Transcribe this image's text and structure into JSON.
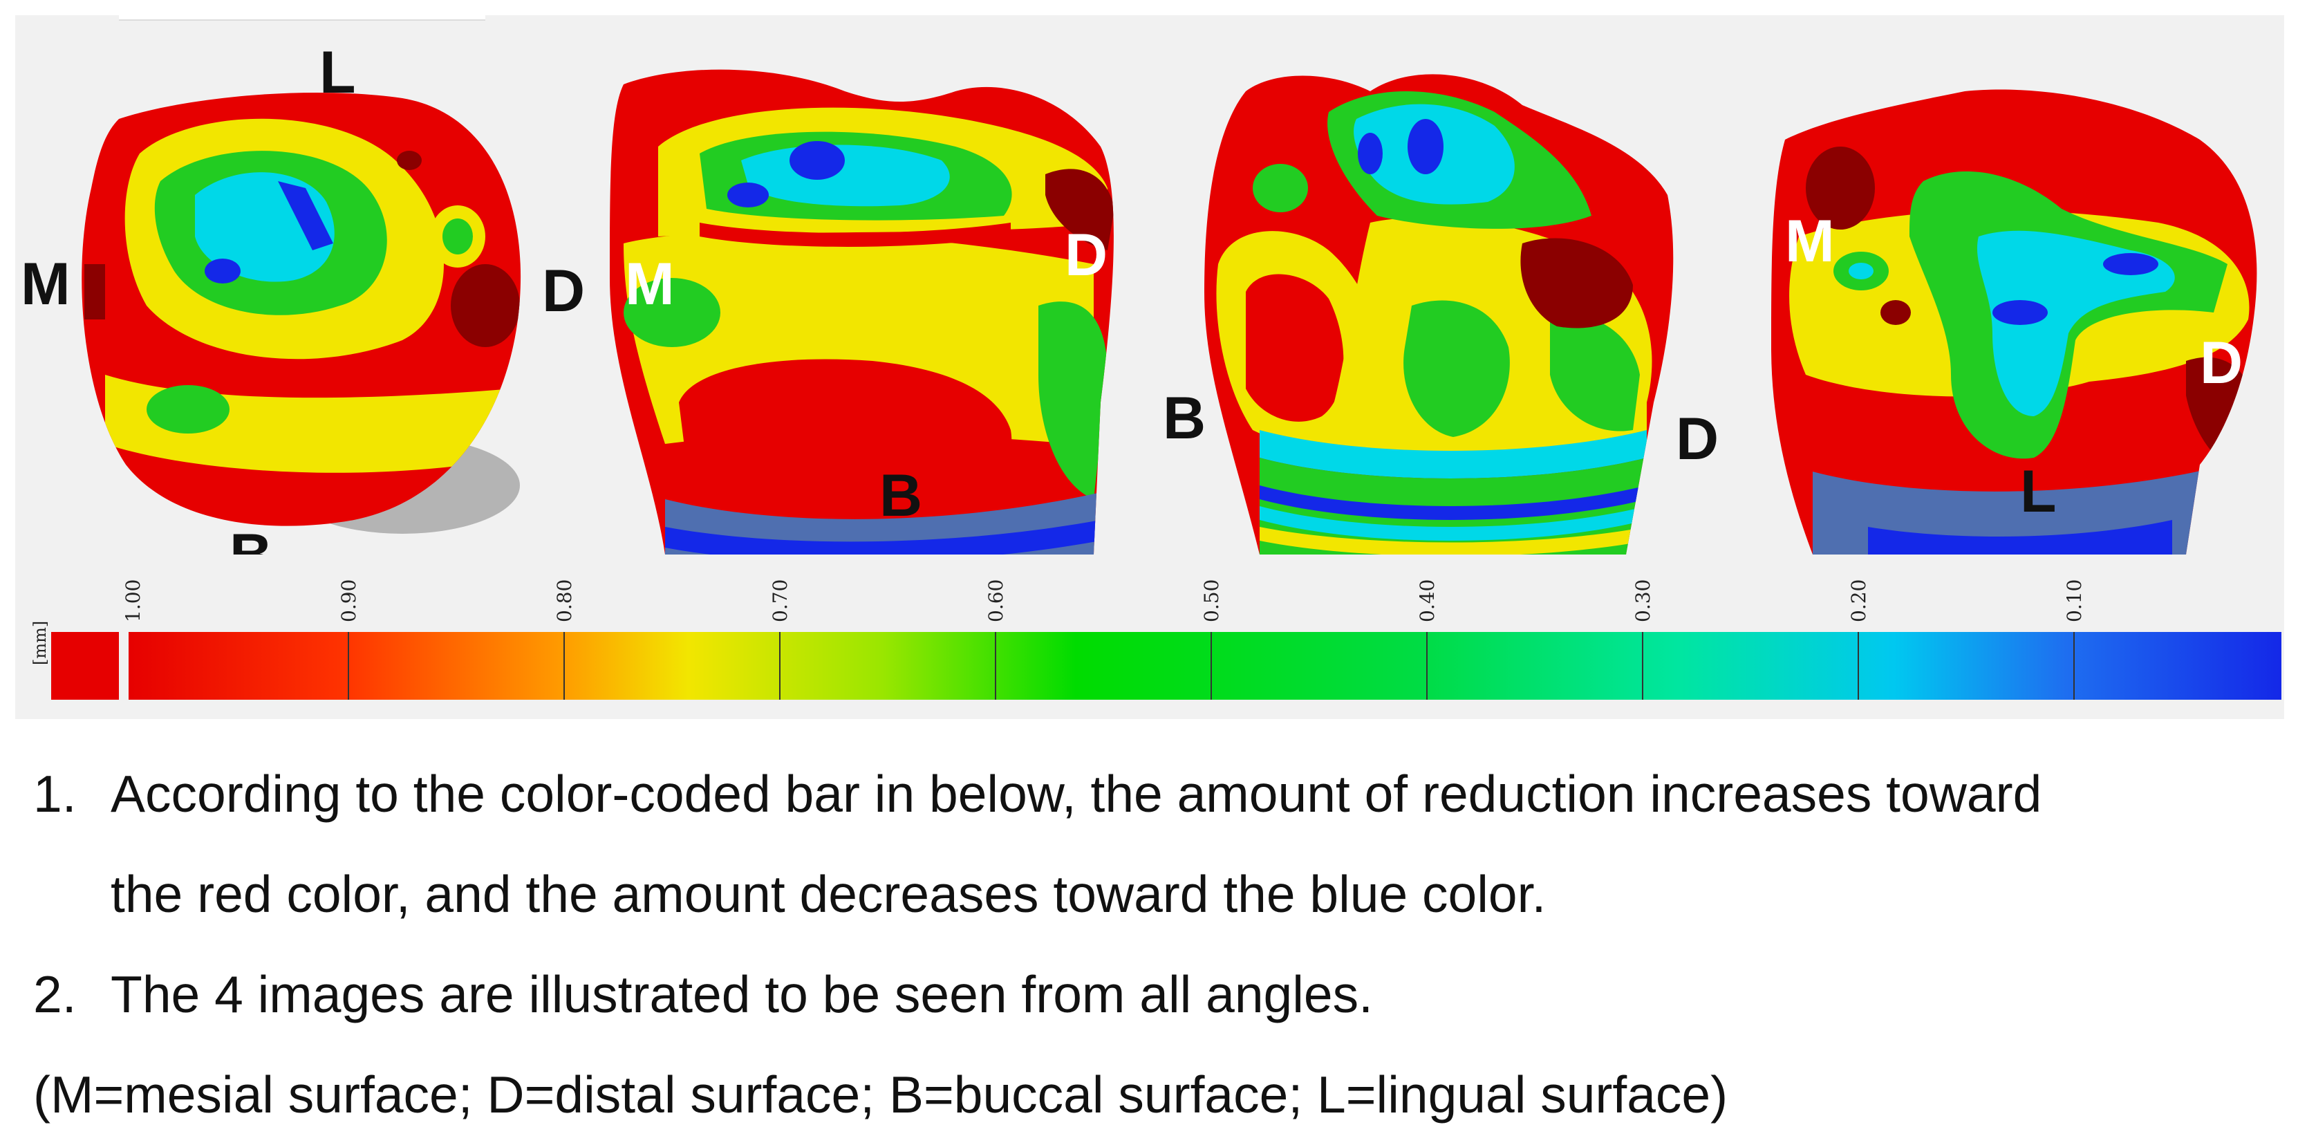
{
  "views": [
    {
      "name": "occlusal view",
      "labels": [
        "L",
        "M",
        "D",
        "B"
      ]
    },
    {
      "name": "buccal view",
      "labels": [
        "M",
        "D",
        "B"
      ]
    },
    {
      "name": "distal view",
      "labels": [
        "B",
        "D"
      ]
    },
    {
      "name": "lingual view",
      "labels": [
        "M",
        "D",
        "L"
      ]
    }
  ],
  "color_scale": {
    "unit": "[mm]",
    "ticks": [
      "1.00",
      "0.90",
      "0.80",
      "0.70",
      "0.60",
      "0.50",
      "0.40",
      "0.30",
      "0.20",
      "0.10"
    ],
    "range_mm": [
      1.0,
      0.0
    ],
    "colors": {
      "high": "#e00000",
      "orange": "#ff8000",
      "yellow": "#f2e600",
      "green": "#00dc00",
      "cyan": "#00d8e8",
      "blue": "#1428e8"
    }
  },
  "notes": [
    {
      "number": "1.",
      "text_line1": "According to the color-coded bar in below, the amount of reduction increases toward",
      "text_line2": "the red color, and the amount decreases toward the blue color."
    },
    {
      "number": "2.",
      "text_line1": "The 4 images are illustrated to be seen from all angles."
    }
  ],
  "legend": "(M=mesial surface; D=distal surface; B=buccal surface; L=lingual surface)"
}
